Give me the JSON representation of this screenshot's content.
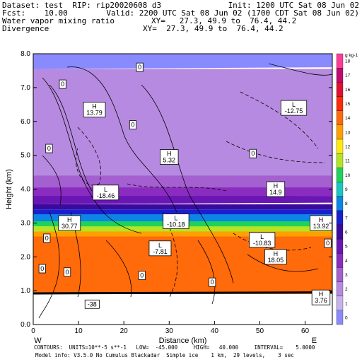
{
  "header": {
    "dataset": "Dataset: test  RIP: rip20020608 d3",
    "init": "Init: 1200 UTC Sat 08 Jun 02",
    "fcst": "Fcst:    10.00",
    "valid": "Valid: 2200 UTC Sat 08 Jun 02 (1700 CDT Sat 08 Jun 02)",
    "field1": "Water vapor mixing ratio",
    "xy1": "XY=   27.3, 49.9 to  76.4, 44.2",
    "field2": "Divergence",
    "xy2": "XY=  27.3, 49.9 to  76.4, 44.2"
  },
  "footer": {
    "line1": "CONTOURS:  UNITS=10**-5 s**-1   LOW=  -45.000     HIGH=   40.000     INTERVAL=    5.0000",
    "line2": "Model info: V3.5.0 No Cumulus Blackadar  Simple ice    1 km,  29 levels,    3 sec"
  },
  "chart_data": {
    "type": "heatmap",
    "title": "",
    "xlabel": "Distance (km)",
    "ylabel": "Height (km)",
    "xlim": [
      0,
      66
    ],
    "ylim": [
      0,
      8
    ],
    "xticks": [
      0,
      10,
      20,
      30,
      40,
      50,
      60
    ],
    "yticks": [
      "0.0",
      "1.0",
      "2.0",
      "3.0",
      "4.0",
      "5.0",
      "6.0",
      "7.0",
      "8.0"
    ],
    "endpoint_labels": [
      "W",
      "E"
    ],
    "colorbar": {
      "units": "g kg-1",
      "levels": [
        "0",
        "1",
        "2",
        "3",
        "4",
        "5",
        "6",
        "7",
        "8",
        "9",
        "10",
        "11",
        "12",
        "13",
        "14",
        "15",
        "16",
        "17",
        "18"
      ],
      "colors": [
        "#8a8aff",
        "#c6b3ec",
        "#b68ae0",
        "#a45fd0",
        "#8a2cc0",
        "#6a16b4",
        "#3a0a9c",
        "#1a20d0",
        "#0a86e6",
        "#18c8c0",
        "#20d25c",
        "#b4e424",
        "#ffea10",
        "#ffa000",
        "#ff6a0a",
        "#ff2a0a",
        "#e0102e",
        "#c00a6e",
        "#ff3c96"
      ]
    },
    "moisture_layers": [
      {
        "bottom_left": 7.55,
        "bottom_right": 7.6,
        "top": 8.0,
        "color": "#8a8aff"
      },
      {
        "bottom_left": 4.4,
        "bottom_right": 4.15,
        "top": 7.55,
        "color": "#b68ae0"
      },
      {
        "bottom_left": 4.05,
        "bottom_right": 3.95,
        "top": 4.4,
        "color": "#a45fd0"
      },
      {
        "bottom_left": 3.75,
        "bottom_right": 3.8,
        "top": 4.05,
        "color": "#8a2cc0"
      },
      {
        "bottom_left": 3.55,
        "bottom_right": 3.6,
        "top": 3.8,
        "color": "#6a16b4"
      },
      {
        "bottom_left": 3.4,
        "bottom_right": 3.4,
        "top": 3.55,
        "color": "#3a0a9c"
      },
      {
        "bottom_left": 3.25,
        "bottom_right": 3.25,
        "top": 3.4,
        "color": "#1a20d0"
      },
      {
        "bottom_left": 3.05,
        "bottom_right": 3.0,
        "top": 3.25,
        "color": "#0a86e6"
      },
      {
        "bottom_left": 2.9,
        "bottom_right": 2.85,
        "top": 3.05,
        "color": "#20d25c"
      },
      {
        "bottom_left": 2.75,
        "bottom_right": 2.7,
        "top": 2.9,
        "color": "#b4e424"
      },
      {
        "bottom_left": 2.6,
        "bottom_right": 2.6,
        "top": 2.75,
        "color": "#ffa000"
      },
      {
        "bottom_left": 0.9,
        "bottom_right": 0.9,
        "top": 2.6,
        "color": "#ff6a0a"
      }
    ],
    "annotations": [
      {
        "text": "0",
        "x": 23.5,
        "y": 7.6
      },
      {
        "text": "0",
        "x": 6.5,
        "y": 7.1
      },
      {
        "text": "H\n13.79",
        "x": 13.5,
        "y": 6.35
      },
      {
        "text": "L\n-12.75",
        "x": 57.5,
        "y": 6.4
      },
      {
        "text": "0",
        "x": 22.0,
        "y": 5.9
      },
      {
        "text": "0",
        "x": 3.5,
        "y": 5.2
      },
      {
        "text": "0",
        "x": 48.5,
        "y": 5.05
      },
      {
        "text": "H\n5.32",
        "x": 30.0,
        "y": 4.95
      },
      {
        "text": "L\n-18.46",
        "x": 16.0,
        "y": 3.9
      },
      {
        "text": "H\n14.9",
        "x": 53.5,
        "y": 4.0
      },
      {
        "text": "H\n30.77",
        "x": 8.0,
        "y": 3.0
      },
      {
        "text": "L\n-10.18",
        "x": 31.5,
        "y": 3.05
      },
      {
        "text": "H\n13.92",
        "x": 63.5,
        "y": 3.0
      },
      {
        "text": "0",
        "x": 3.0,
        "y": 2.55
      },
      {
        "text": "L\n-10.83",
        "x": 50.5,
        "y": 2.5
      },
      {
        "text": "L\n-7.81",
        "x": 28.0,
        "y": 2.25
      },
      {
        "text": "0",
        "x": 65.0,
        "y": 2.4
      },
      {
        "text": "H\n18.05",
        "x": 53.5,
        "y": 2.0
      },
      {
        "text": "0",
        "x": 2.0,
        "y": 1.65
      },
      {
        "text": "0",
        "x": 7.5,
        "y": 1.55
      },
      {
        "text": "0",
        "x": 24.0,
        "y": 1.45
      },
      {
        "text": "0",
        "x": 39.5,
        "y": 1.25
      },
      {
        "text": "H\n3.76",
        "x": 63.5,
        "y": 0.8
      },
      {
        "text": "-38",
        "x": 13.0,
        "y": 0.6
      }
    ]
  }
}
